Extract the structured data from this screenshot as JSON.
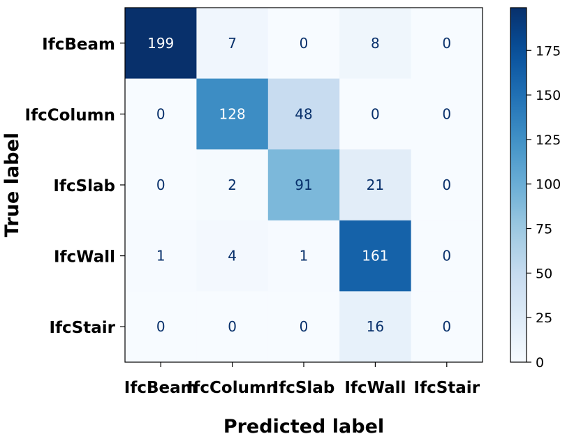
{
  "chart_data": {
    "type": "heatmap",
    "title": "",
    "xlabel": "Predicted label",
    "ylabel": "True label",
    "x_categories": [
      "IfcBeam",
      "IfcColumn",
      "IfcSlab",
      "IfcWall",
      "IfcStair"
    ],
    "y_categories": [
      "IfcBeam",
      "IfcColumn",
      "IfcSlab",
      "IfcWall",
      "IfcStair"
    ],
    "values": [
      [
        199,
        7,
        0,
        8,
        0
      ],
      [
        0,
        128,
        48,
        0,
        0
      ],
      [
        0,
        2,
        91,
        21,
        0
      ],
      [
        1,
        4,
        1,
        161,
        0
      ],
      [
        0,
        0,
        0,
        16,
        0
      ]
    ],
    "colormap": "Blues",
    "vmin": 0,
    "vmax": 199,
    "colorbar": {
      "ticks": [
        0,
        25,
        50,
        75,
        100,
        125,
        150,
        175
      ],
      "labels": [
        "0",
        "25",
        "50",
        "75",
        "100",
        "125",
        "150",
        "175"
      ]
    },
    "text_colors": {
      "light": "#ffffff",
      "dark": "#08306b"
    },
    "grid": false
  }
}
